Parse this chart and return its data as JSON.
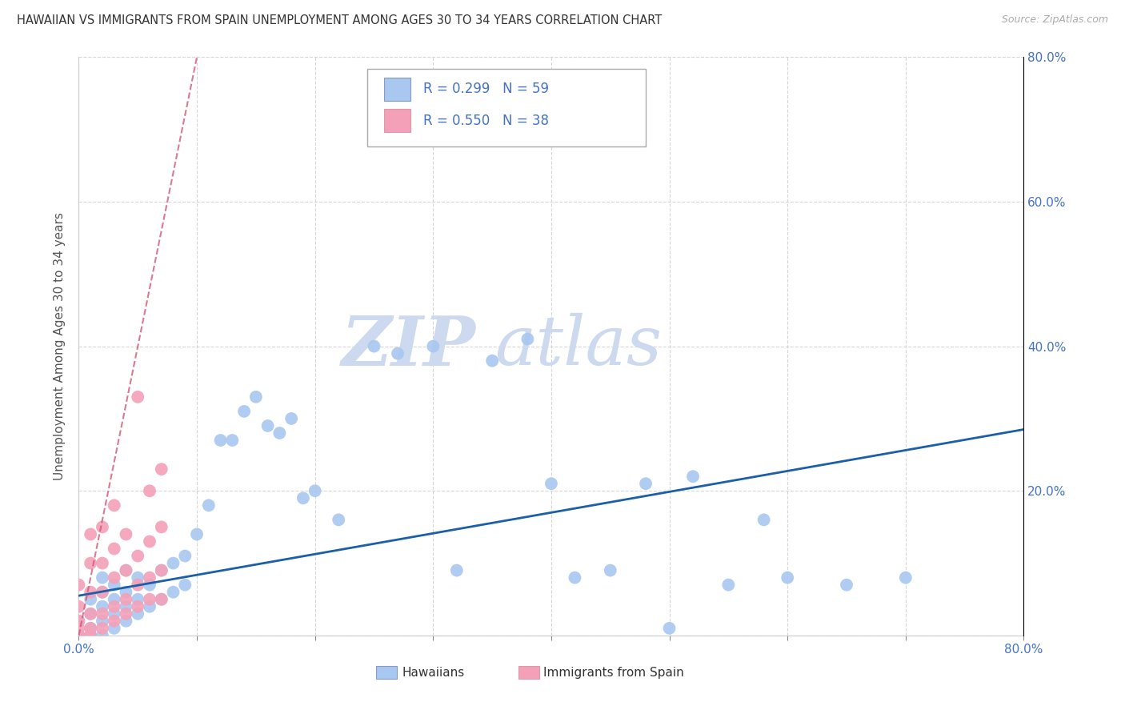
{
  "title": "HAWAIIAN VS IMMIGRANTS FROM SPAIN UNEMPLOYMENT AMONG AGES 30 TO 34 YEARS CORRELATION CHART",
  "source": "Source: ZipAtlas.com",
  "ylabel": "Unemployment Among Ages 30 to 34 years",
  "xlim": [
    0,
    0.8
  ],
  "ylim": [
    0,
    0.8
  ],
  "legend_r1": "R = 0.299",
  "legend_n1": "N = 59",
  "legend_r2": "R = 0.550",
  "legend_n2": "N = 38",
  "color_hawaiian": "#a8c8f0",
  "color_spain": "#f4a0b8",
  "color_trendline_hawaiian": "#1a5fa8",
  "color_trendline_spain": "#d05878",
  "color_axis_blue": "#4472c4",
  "color_grid": "#cccccc",
  "watermark_zip": "ZIP",
  "watermark_atlas": "atlas",
  "hawaiians_x": [
    0.0,
    0.0,
    0.01,
    0.01,
    0.01,
    0.01,
    0.02,
    0.02,
    0.02,
    0.02,
    0.02,
    0.03,
    0.03,
    0.03,
    0.03,
    0.04,
    0.04,
    0.04,
    0.04,
    0.05,
    0.05,
    0.05,
    0.06,
    0.06,
    0.07,
    0.07,
    0.08,
    0.08,
    0.09,
    0.09,
    0.1,
    0.11,
    0.12,
    0.13,
    0.14,
    0.15,
    0.16,
    0.17,
    0.18,
    0.19,
    0.2,
    0.22,
    0.25,
    0.27,
    0.3,
    0.32,
    0.35,
    0.38,
    0.4,
    0.42,
    0.45,
    0.48,
    0.5,
    0.52,
    0.55,
    0.58,
    0.6,
    0.65,
    0.7
  ],
  "hawaiians_y": [
    0.0,
    0.02,
    0.0,
    0.01,
    0.03,
    0.05,
    0.0,
    0.02,
    0.04,
    0.06,
    0.08,
    0.01,
    0.03,
    0.05,
    0.07,
    0.02,
    0.04,
    0.06,
    0.09,
    0.03,
    0.05,
    0.08,
    0.04,
    0.07,
    0.05,
    0.09,
    0.06,
    0.1,
    0.07,
    0.11,
    0.14,
    0.18,
    0.27,
    0.27,
    0.31,
    0.33,
    0.29,
    0.28,
    0.3,
    0.19,
    0.2,
    0.16,
    0.4,
    0.39,
    0.4,
    0.09,
    0.38,
    0.41,
    0.21,
    0.08,
    0.09,
    0.21,
    0.01,
    0.22,
    0.07,
    0.16,
    0.08,
    0.07,
    0.08
  ],
  "spain_x": [
    0.0,
    0.0,
    0.0,
    0.0,
    0.0,
    0.0,
    0.01,
    0.01,
    0.01,
    0.01,
    0.01,
    0.01,
    0.02,
    0.02,
    0.02,
    0.02,
    0.02,
    0.03,
    0.03,
    0.03,
    0.03,
    0.03,
    0.04,
    0.04,
    0.04,
    0.04,
    0.05,
    0.05,
    0.05,
    0.05,
    0.06,
    0.06,
    0.06,
    0.06,
    0.07,
    0.07,
    0.07,
    0.07
  ],
  "spain_y": [
    0.0,
    0.0,
    0.01,
    0.02,
    0.04,
    0.07,
    0.0,
    0.01,
    0.03,
    0.06,
    0.1,
    0.14,
    0.01,
    0.03,
    0.06,
    0.1,
    0.15,
    0.02,
    0.04,
    0.08,
    0.12,
    0.18,
    0.03,
    0.05,
    0.09,
    0.14,
    0.04,
    0.07,
    0.11,
    0.33,
    0.05,
    0.08,
    0.13,
    0.2,
    0.05,
    0.09,
    0.15,
    0.23
  ],
  "trendline_h_x0": 0.0,
  "trendline_h_y0": 0.055,
  "trendline_h_x1": 0.8,
  "trendline_h_y1": 0.285,
  "trendline_s_x0": 0.0,
  "trendline_s_y0": 0.0,
  "trendline_s_x1": 0.1,
  "trendline_s_y1": 0.8
}
